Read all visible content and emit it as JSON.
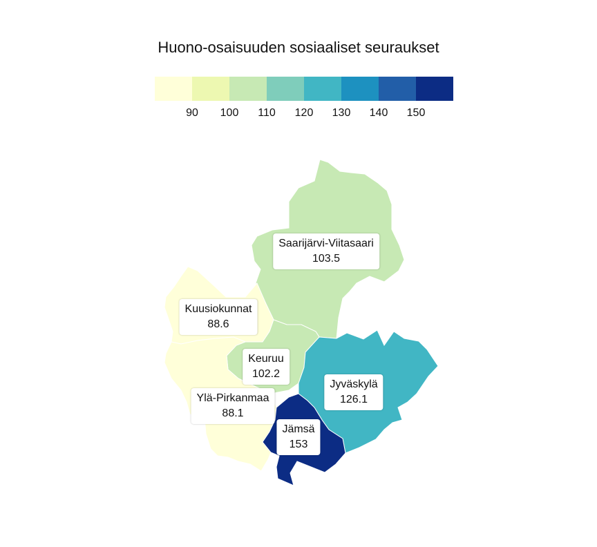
{
  "title": "Huono-osaisuuden sosiaaliset seuraukset",
  "legend": {
    "colors": [
      "#ffffd9",
      "#edf8b1",
      "#c7e9b4",
      "#7fcdbb",
      "#41b6c4",
      "#1d91c0",
      "#225ea8",
      "#0c2c84"
    ],
    "ticks": [
      "90",
      "100",
      "110",
      "120",
      "130",
      "140",
      "150"
    ]
  },
  "chart_data": {
    "type": "choropleth",
    "title": "Huono-osaisuuden sosiaaliset seuraukset",
    "scale": {
      "min": 85,
      "max": 155,
      "step": 10
    },
    "regions": [
      {
        "id": "saarijarvi-viitasaari",
        "name": "Saarijärvi-Viitasaari",
        "value": 103.5,
        "value_label": "103.5",
        "color": "#c7e9b4"
      },
      {
        "id": "kuusiokunnat",
        "name": "Kuusiokunnat",
        "value": 88.6,
        "value_label": "88.6",
        "color": "#ffffd9"
      },
      {
        "id": "keuruu",
        "name": "Keuruu",
        "value": 102.2,
        "value_label": "102.2",
        "color": "#c7e9b4"
      },
      {
        "id": "yla-pirkanmaa",
        "name": "Ylä-Pirkanmaa",
        "value": 88.1,
        "value_label": "88.1",
        "color": "#ffffd9"
      },
      {
        "id": "jyvaskyla",
        "name": "Jyväskylä",
        "value": 126.1,
        "value_label": "126.1",
        "color": "#41b6c4"
      },
      {
        "id": "jamsa",
        "name": "Jämsä",
        "value": 153,
        "value_label": "153",
        "color": "#0c2c84"
      }
    ]
  }
}
